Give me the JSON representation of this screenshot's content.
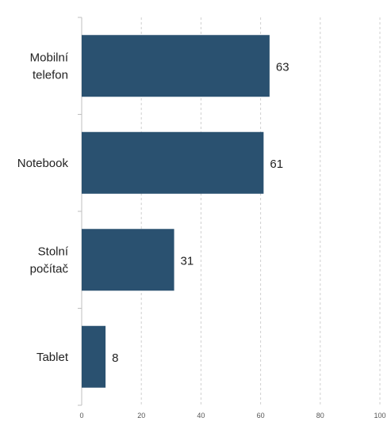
{
  "chart_data": {
    "type": "bar",
    "orientation": "horizontal",
    "categories": [
      [
        "Mobilní",
        "telefon"
      ],
      [
        "Notebook"
      ],
      [
        "Stolní",
        "počítač"
      ],
      [
        "Tablet"
      ]
    ],
    "values": [
      63,
      61,
      31,
      8
    ],
    "data_labels": [
      "63",
      "61",
      "31",
      "8"
    ],
    "x_ticks": [
      "0",
      "20",
      "40",
      "60",
      "80",
      "100"
    ],
    "xlim": [
      0,
      100
    ],
    "title": "",
    "xlabel": "",
    "ylabel": "",
    "grid": "vertical dashed",
    "legend": "none",
    "colors": {
      "bar": "#2a5170",
      "grid": "#cfcfcf",
      "axis": "#bfbfbf",
      "text": "#222222",
      "tick_text": "#555555"
    }
  }
}
